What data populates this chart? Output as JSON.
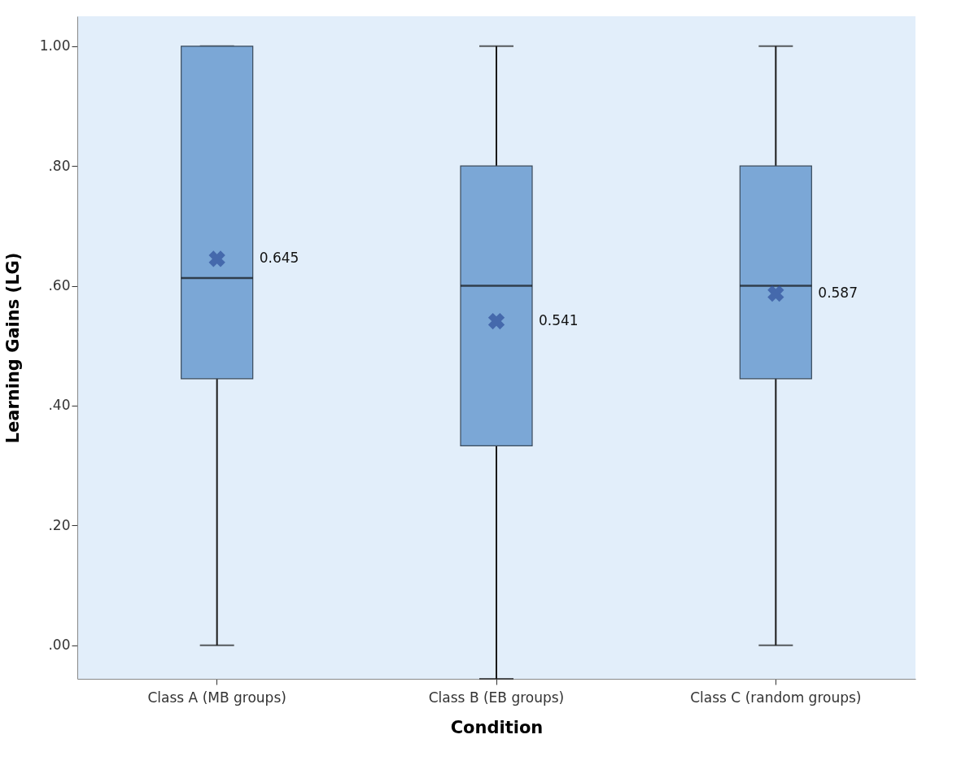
{
  "chart_data": {
    "type": "box",
    "xlabel": "Condition",
    "ylabel": "Learning Gains (LG)",
    "categories": [
      "Class A (MB groups)",
      "Class B (EB groups)",
      "Class C (random groups)"
    ],
    "series": [
      {
        "color": "#7ba7d6",
        "value_labels": [
          "0.645",
          "0.541",
          "0.587"
        ],
        "boxes": [
          {
            "low": 0.0,
            "q1": 0.445,
            "median": 0.613,
            "q3": 1.0,
            "high": 1.0,
            "mean": 0.645
          },
          {
            "low": -0.056,
            "q1": 0.333,
            "median": 0.6,
            "q3": 0.8,
            "high": 1.0,
            "mean": 0.541
          },
          {
            "low": 0.0,
            "q1": 0.445,
            "median": 0.6,
            "q3": 0.8,
            "high": 1.0,
            "mean": 0.587
          }
        ]
      }
    ],
    "ylim": [
      -0.056,
      1.05
    ],
    "yticks": [
      {
        "value": 0,
        "label": ".00"
      },
      {
        "value": 0.2,
        "label": ".20"
      },
      {
        "value": 0.4,
        "label": ".40"
      },
      {
        "value": 0.6,
        "label": ".60"
      },
      {
        "value": 0.8,
        "label": ".80"
      },
      {
        "value": 1,
        "label": "1.00"
      }
    ],
    "grid": false,
    "marker": "cross"
  }
}
